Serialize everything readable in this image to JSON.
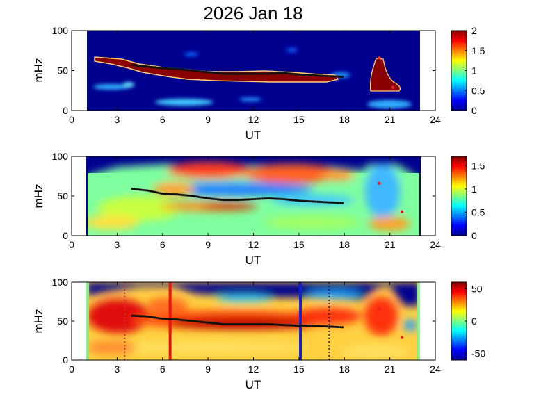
{
  "title": "2026 Jan 18",
  "chart_data": [
    {
      "type": "heatmap",
      "panel": "top",
      "xlabel": "UT",
      "ylabel": "mHz",
      "xlim": [
        0,
        24
      ],
      "ylim": [
        0,
        100
      ],
      "xticks": [
        "0",
        "3",
        "6",
        "9",
        "12",
        "15",
        "18",
        "21",
        "24"
      ],
      "yticks": [
        "0",
        "50",
        "100"
      ],
      "data_time_range": [
        1,
        23
      ],
      "colorbar": {
        "min": 0,
        "max": 2,
        "ticks": [
          "0",
          "0.5",
          "1",
          "1.5",
          "2"
        ]
      },
      "ridge_points": [
        [
          4,
          57
        ],
        [
          5,
          55
        ],
        [
          6,
          53
        ],
        [
          7,
          52
        ],
        [
          8,
          50
        ],
        [
          9,
          48
        ],
        [
          10,
          46
        ],
        [
          11,
          46
        ],
        [
          12,
          46
        ],
        [
          13,
          46
        ],
        [
          14,
          47
        ],
        [
          15,
          45
        ],
        [
          16,
          44
        ],
        [
          17,
          43
        ],
        [
          18,
          42
        ]
      ],
      "red_markers": [
        [
          20.3,
          66
        ],
        [
          21.2,
          29
        ]
      ]
    },
    {
      "type": "heatmap",
      "panel": "middle",
      "xlabel": "UT",
      "ylabel": "mHz",
      "xlim": [
        0,
        24
      ],
      "ylim": [
        0,
        100
      ],
      "xticks": [
        "0",
        "3",
        "6",
        "9",
        "12",
        "15",
        "18",
        "21",
        "24"
      ],
      "yticks": [
        "0",
        "50",
        "100"
      ],
      "data_time_range": [
        1,
        23
      ],
      "colorbar": {
        "min": 0,
        "max": 1.7,
        "ticks": [
          "0",
          "0.5",
          "1",
          "1.5"
        ]
      },
      "ridge_points": [
        [
          4,
          59
        ],
        [
          5,
          57
        ],
        [
          6,
          53
        ],
        [
          7,
          52
        ],
        [
          8,
          50
        ],
        [
          9,
          47
        ],
        [
          10,
          45
        ],
        [
          11,
          45
        ],
        [
          12,
          46
        ],
        [
          13,
          47
        ],
        [
          14,
          46
        ],
        [
          15,
          44
        ],
        [
          16,
          43
        ],
        [
          17,
          42
        ],
        [
          18,
          41
        ]
      ],
      "red_markers": [
        [
          20.3,
          66
        ],
        [
          21.8,
          30
        ]
      ]
    },
    {
      "type": "heatmap",
      "panel": "bottom",
      "xlabel": "UT",
      "ylabel": "mHz",
      "xlim": [
        0,
        24
      ],
      "ylim": [
        0,
        100
      ],
      "xticks": [
        "0",
        "3",
        "6",
        "9",
        "12",
        "15",
        "18",
        "21",
        "24"
      ],
      "yticks": [
        "0",
        "50",
        "100"
      ],
      "data_time_range": [
        1,
        23
      ],
      "colorbar": {
        "min": -60,
        "max": 60,
        "ticks": [
          "-50",
          "0",
          "50"
        ]
      },
      "ridge_points": [
        [
          4,
          57
        ],
        [
          5,
          56
        ],
        [
          6,
          53
        ],
        [
          7,
          52
        ],
        [
          8,
          50
        ],
        [
          9,
          48
        ],
        [
          10,
          46
        ],
        [
          11,
          46
        ],
        [
          12,
          46
        ],
        [
          13,
          46
        ],
        [
          14,
          45
        ],
        [
          15,
          44
        ],
        [
          16,
          44
        ],
        [
          17,
          43
        ],
        [
          18,
          42
        ]
      ],
      "red_markers": [
        [
          20.3,
          66
        ],
        [
          21.8,
          29
        ]
      ],
      "vertical_lines": [
        {
          "x": 6.5,
          "color": "#ee1111",
          "style": "solid"
        },
        {
          "x": 15.1,
          "color": "#1122cc",
          "style": "solid"
        },
        {
          "x": 3.5,
          "color": "#cc3333",
          "style": "dotted"
        },
        {
          "x": 17.0,
          "color": "#222244",
          "style": "dotted"
        }
      ]
    }
  ]
}
